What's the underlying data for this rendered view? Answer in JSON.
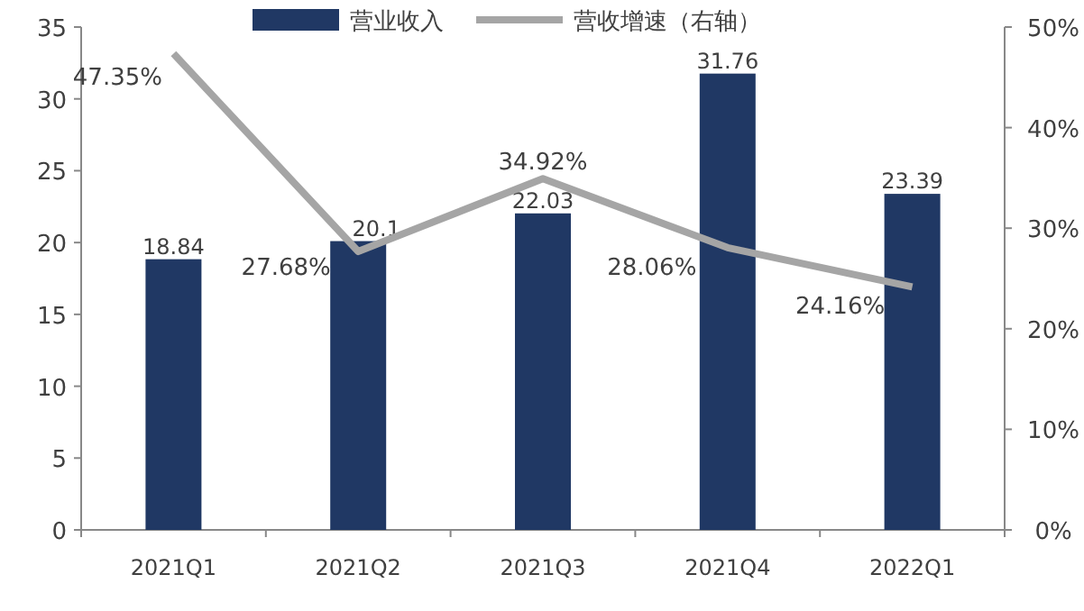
{
  "chart_data": {
    "type": "bar",
    "categories": [
      "2021Q1",
      "2021Q2",
      "2021Q3",
      "2021Q4",
      "2022Q1"
    ],
    "series": [
      {
        "name": "营业收入",
        "color": "#203864",
        "values": [
          18.84,
          20.1,
          22.03,
          31.76,
          23.39
        ],
        "value_labels": [
          "18.84",
          "20.1",
          "22.03",
          "31.76",
          "23.39"
        ]
      },
      {
        "name": "营收增速（右轴）",
        "type": "line",
        "axis": "y2",
        "color": "#a5a5a5",
        "values": [
          47.35,
          27.68,
          34.92,
          28.06,
          24.16
        ],
        "value_labels": [
          "47.35%",
          "27.68%",
          "34.92%",
          "28.06%",
          "24.16%"
        ]
      }
    ],
    "ylim": [
      0,
      35
    ],
    "yticks": [
      0,
      5,
      10,
      15,
      20,
      25,
      30,
      35
    ],
    "y2lim": [
      0,
      50
    ],
    "y2ticks": [
      {
        "value": 0,
        "label": "0%"
      },
      {
        "value": 10,
        "label": "10%"
      },
      {
        "value": 20,
        "label": "20%"
      },
      {
        "value": 30,
        "label": "30%"
      },
      {
        "value": 40,
        "label": "40%"
      },
      {
        "value": 50,
        "label": "50%"
      }
    ],
    "legend": "top"
  }
}
